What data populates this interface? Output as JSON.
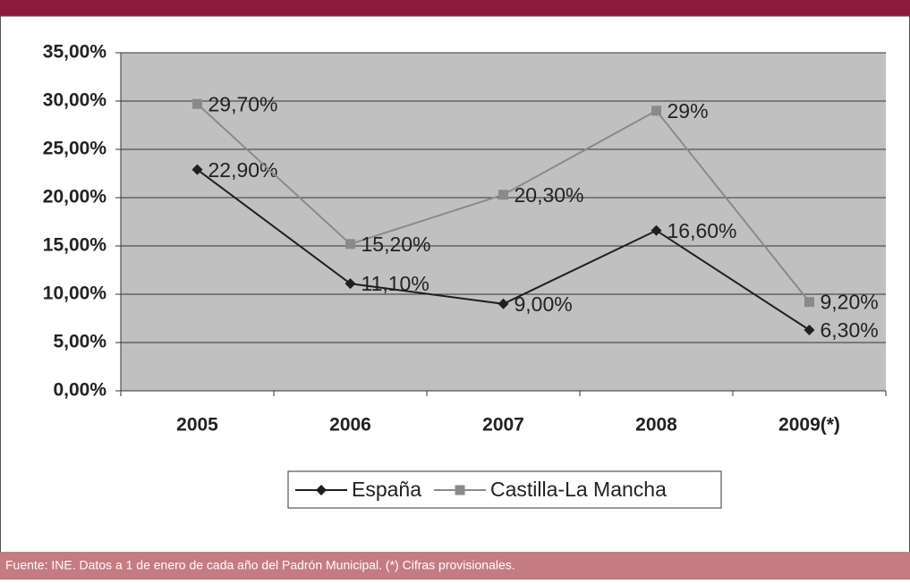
{
  "chart_data": {
    "type": "line",
    "categories": [
      "2005",
      "2006",
      "2007",
      "2008",
      "2009(*)"
    ],
    "series": [
      {
        "name": "España",
        "color": "#1f1f1f",
        "marker": "diamond",
        "values": [
          22.9,
          11.1,
          9.0,
          16.6,
          6.3
        ],
        "value_labels": [
          "22,90%",
          "11,10%",
          "9,00%",
          "16,60%",
          "6,30%"
        ]
      },
      {
        "name": "Castilla-La Mancha",
        "color": "#8a8a8a",
        "marker": "square",
        "values": [
          29.7,
          15.2,
          20.3,
          29,
          9.2
        ],
        "value_labels": [
          "29,70%",
          "15,20%",
          "20,30%",
          "29%",
          "9,20%"
        ]
      }
    ],
    "ylim": [
      0,
      35
    ],
    "yticks": [
      {
        "value": 0,
        "label": "0,00%"
      },
      {
        "value": 5,
        "label": "5,00%"
      },
      {
        "value": 10,
        "label": "10,00%"
      },
      {
        "value": 15,
        "label": "15,00%"
      },
      {
        "value": 20,
        "label": "20,00%"
      },
      {
        "value": 25,
        "label": "25,00%"
      },
      {
        "value": 30,
        "label": "30,00%"
      },
      {
        "value": 35,
        "label": "35,00%"
      }
    ],
    "grid": true,
    "legend": "bottom",
    "footer": "Fuente: INE. Datos a 1 de enero de cada año del Padrón Municipal. (*) Cifras provisionales."
  }
}
